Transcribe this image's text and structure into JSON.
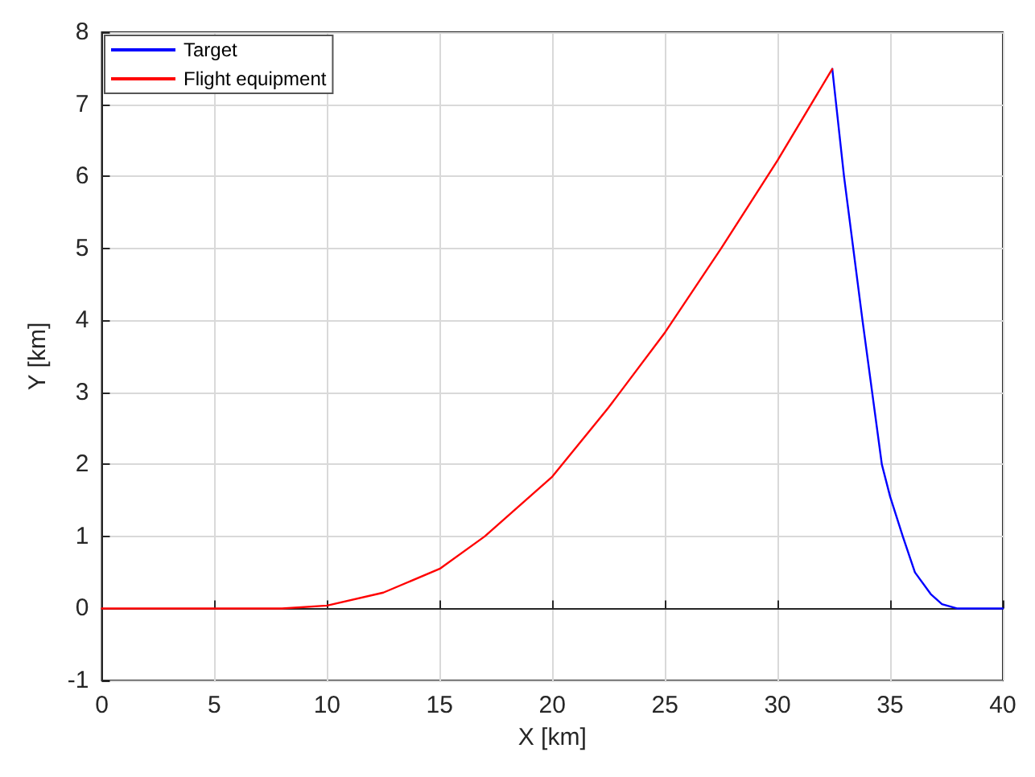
{
  "chart_data": {
    "type": "line",
    "xlabel": "X [km]",
    "ylabel": "Y [km]",
    "series": [
      {
        "name": "Target",
        "color": "#0000ff",
        "x": [
          32.43,
          32.95,
          33.77,
          34.63,
          35.0,
          35.56,
          36.1,
          36.8,
          37.3,
          37.96,
          40
        ],
        "values": [
          7.49,
          6,
          4,
          2,
          1.55,
          1,
          0.5,
          0.2,
          0.06,
          0,
          0
        ]
      },
      {
        "name": "Flight equipment",
        "color": "#ff0000",
        "x": [
          0,
          5,
          8,
          10,
          12.5,
          15,
          17,
          20,
          22.5,
          25,
          27.5,
          30,
          32.43
        ],
        "values": [
          0,
          0,
          0,
          0.04,
          0.22,
          0.55,
          1,
          1.83,
          2.79,
          3.83,
          5,
          6.22,
          7.49
        ]
      }
    ],
    "xlim": [
      0,
      40
    ],
    "xticks": [
      0,
      5,
      10,
      15,
      20,
      25,
      30,
      35,
      40
    ],
    "ylim": [
      -1,
      8
    ],
    "yticks": [
      -1,
      0,
      1,
      2,
      3,
      4,
      5,
      6,
      7,
      8
    ],
    "grid": true,
    "legend": "top left",
    "marker": "none",
    "line_style": "solid"
  }
}
